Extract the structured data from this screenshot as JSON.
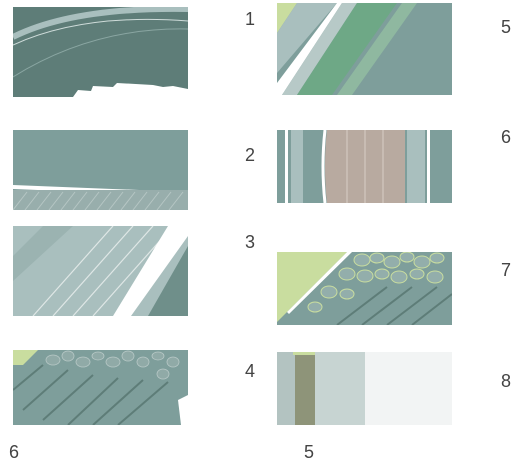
{
  "labels": {
    "row1_mid": "1",
    "row2_mid": "2",
    "row3_mid": "3",
    "row4_mid": "4",
    "row1_right": "5",
    "row2_right": "6",
    "row3_right": "7",
    "row4_right": "8",
    "bottom_left": "6",
    "bottom_mid": "5"
  },
  "palette": {
    "dark_teal": "#5e7d78",
    "mid_teal": "#7e9e9b",
    "light_teal": "#a9bfbe",
    "pale": "#c7d4d2",
    "light_green": "#c9dd9f",
    "green_band": "#6ea886",
    "tan": "#b8aaa0",
    "olive": "#8e9479",
    "very_light": "#f2f4f4"
  }
}
